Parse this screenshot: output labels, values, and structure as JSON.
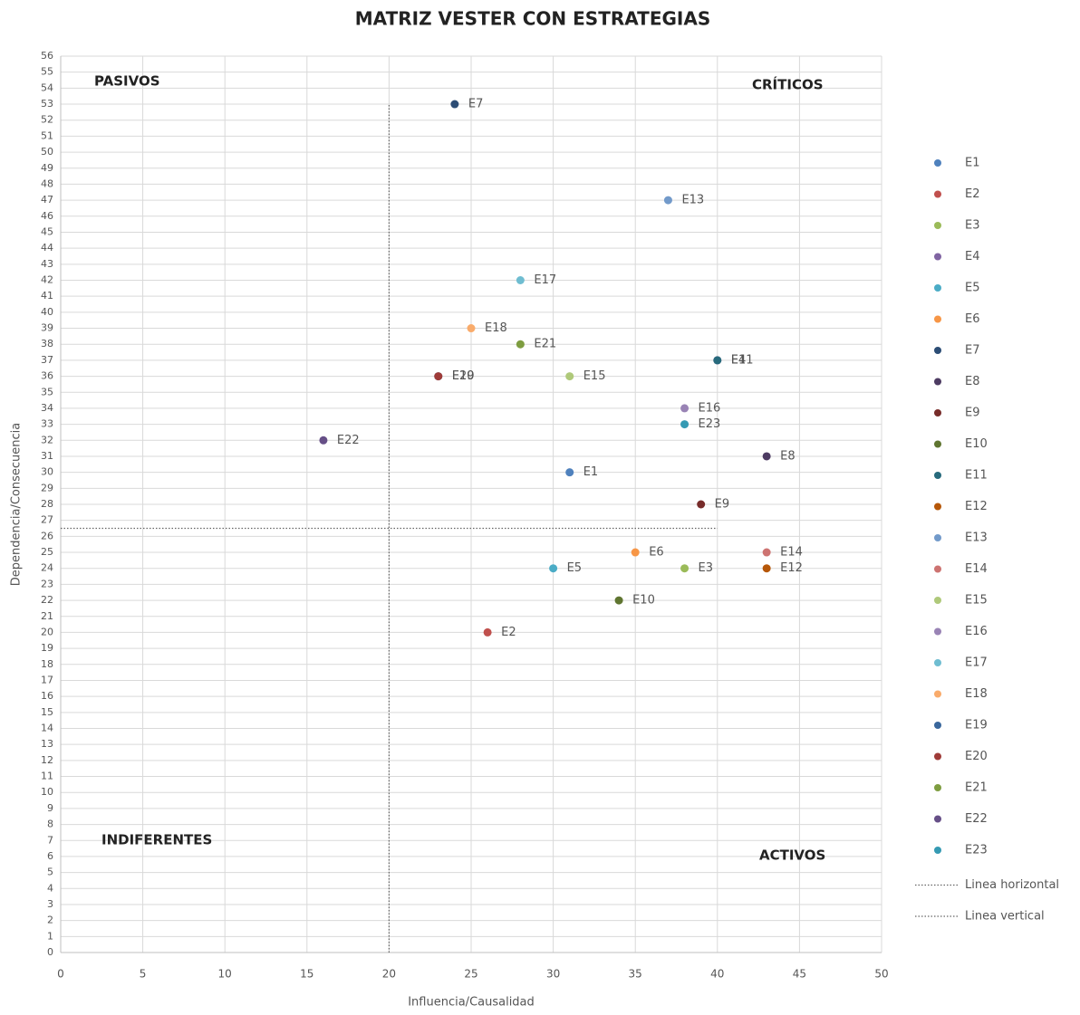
{
  "chart_data": {
    "type": "scatter",
    "title": "MATRIZ VESTER CON ESTRATEGIAS",
    "x_label": "Influencia/Causalidad",
    "y_label": "Dependencia/Consecuencia",
    "xlim": [
      0,
      50
    ],
    "ylim": [
      0,
      56
    ],
    "xticks": [
      0,
      5,
      10,
      15,
      20,
      25,
      30,
      35,
      40,
      45,
      50
    ],
    "yticks": [
      0,
      1,
      2,
      3,
      4,
      5,
      6,
      7,
      8,
      9,
      10,
      11,
      12,
      13,
      14,
      15,
      16,
      17,
      18,
      19,
      20,
      21,
      22,
      23,
      24,
      25,
      26,
      27,
      28,
      29,
      30,
      31,
      32,
      33,
      34,
      35,
      36,
      37,
      38,
      39,
      40,
      41,
      42,
      43,
      44,
      45,
      46,
      47,
      48,
      49,
      50,
      51,
      52,
      53,
      54,
      55,
      56
    ],
    "grid": true,
    "annotations": [
      "PASIVOS",
      "CRÍTICOS",
      "INDIFERENTES",
      "ACTIVOS"
    ],
    "series": [
      {
        "name": "E1",
        "color": "#4f81bd",
        "x": [
          31
        ],
        "y": [
          30
        ]
      },
      {
        "name": "E2",
        "color": "#c0504d",
        "x": [
          26
        ],
        "y": [
          20
        ]
      },
      {
        "name": "E3",
        "color": "#9bbb59",
        "x": [
          38
        ],
        "y": [
          24
        ]
      },
      {
        "name": "E4",
        "color": "#8064a2",
        "x": [
          40
        ],
        "y": [
          37
        ]
      },
      {
        "name": "E5",
        "color": "#4bacc6",
        "x": [
          30
        ],
        "y": [
          24
        ]
      },
      {
        "name": "E6",
        "color": "#f79646",
        "x": [
          35
        ],
        "y": [
          25
        ]
      },
      {
        "name": "E7",
        "color": "#2c4d75",
        "x": [
          24
        ],
        "y": [
          53
        ]
      },
      {
        "name": "E8",
        "color": "#4d3b62",
        "x": [
          43
        ],
        "y": [
          31
        ]
      },
      {
        "name": "E9",
        "color": "#772c2a",
        "x": [
          39
        ],
        "y": [
          28
        ]
      },
      {
        "name": "E10",
        "color": "#5f7530",
        "x": [
          34
        ],
        "y": [
          22
        ]
      },
      {
        "name": "E11",
        "color": "#276a7c",
        "x": [
          40
        ],
        "y": [
          37
        ]
      },
      {
        "name": "E12",
        "color": "#b65708",
        "x": [
          43
        ],
        "y": [
          24
        ]
      },
      {
        "name": "E13",
        "color": "#729aca",
        "x": [
          37
        ],
        "y": [
          47
        ]
      },
      {
        "name": "E14",
        "color": "#cd7371",
        "x": [
          43
        ],
        "y": [
          25
        ]
      },
      {
        "name": "E15",
        "color": "#afc97a",
        "x": [
          31
        ],
        "y": [
          36
        ]
      },
      {
        "name": "E16",
        "color": "#9983b5",
        "x": [
          38
        ],
        "y": [
          34
        ]
      },
      {
        "name": "E17",
        "color": "#6fbdd1",
        "x": [
          28
        ],
        "y": [
          42
        ]
      },
      {
        "name": "E18",
        "color": "#f9ab6b",
        "x": [
          25
        ],
        "y": [
          39
        ]
      },
      {
        "name": "E19",
        "color": "#3a679c",
        "x": [
          23
        ],
        "y": [
          36
        ]
      },
      {
        "name": "E20",
        "color": "#9f3b38",
        "x": [
          23
        ],
        "y": [
          36
        ]
      },
      {
        "name": "E21",
        "color": "#7e9d40",
        "x": [
          28
        ],
        "y": [
          38
        ]
      },
      {
        "name": "E22",
        "color": "#664f87",
        "x": [
          16
        ],
        "y": [
          32
        ]
      },
      {
        "name": "E23",
        "color": "#359ab3",
        "x": [
          38
        ],
        "y": [
          33
        ]
      },
      {
        "name": "Linea horizontal",
        "color": "#666666",
        "style": "dotted",
        "x": [
          0,
          40
        ],
        "y": [
          26.5,
          26.5
        ]
      },
      {
        "name": "Linea vertical",
        "color": "#666666",
        "style": "dotted",
        "x": [
          20,
          20
        ],
        "y": [
          0,
          53
        ]
      }
    ]
  }
}
